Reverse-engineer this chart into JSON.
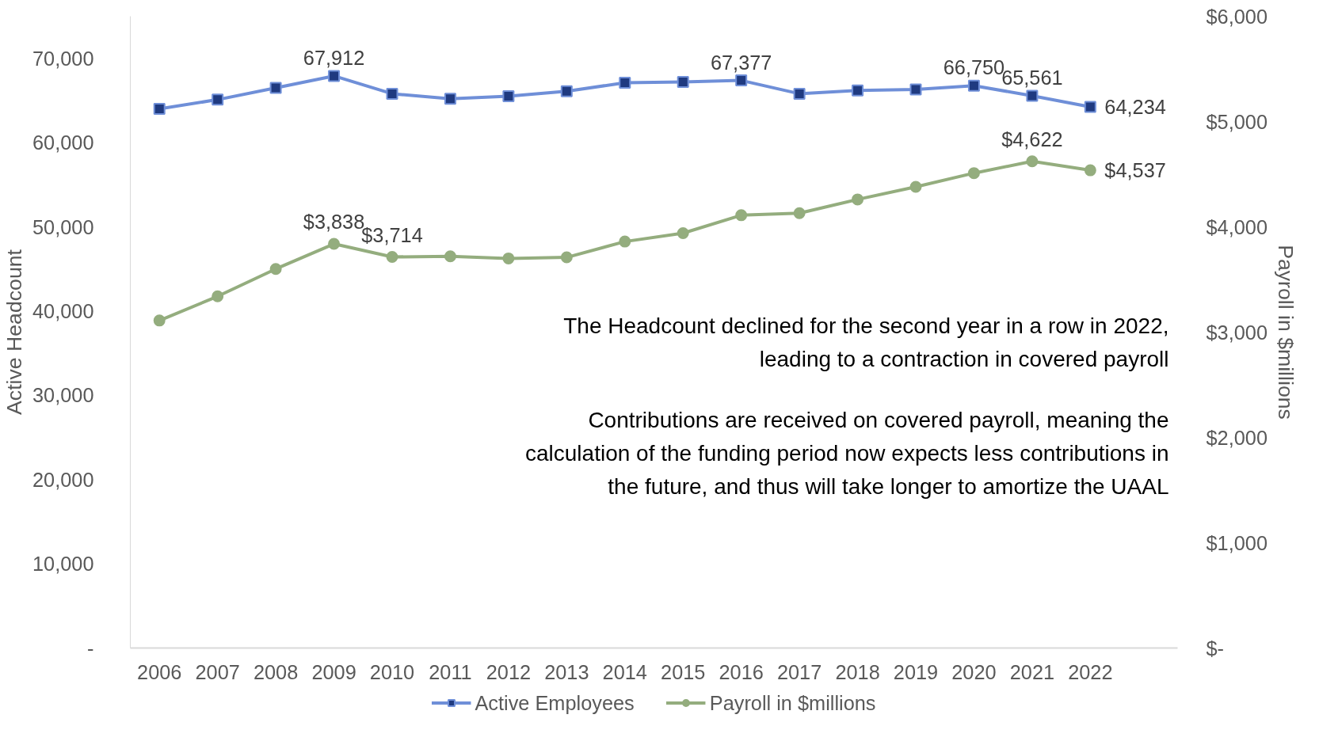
{
  "chart_data": {
    "type": "line",
    "categories": [
      "2006",
      "2007",
      "2008",
      "2009",
      "2010",
      "2011",
      "2012",
      "2013",
      "2014",
      "2015",
      "2016",
      "2017",
      "2018",
      "2019",
      "2020",
      "2021",
      "2022"
    ],
    "series": [
      {
        "name": "Active Employees",
        "color": "#6f8fd8",
        "marker": "square",
        "axis": "y",
        "values": [
          64000,
          65100,
          66500,
          67912,
          65800,
          65200,
          65500,
          66100,
          67100,
          67200,
          67377,
          65800,
          66200,
          66300,
          66750,
          65561,
          64234
        ],
        "value_labels": [
          null,
          null,
          null,
          "67,912",
          null,
          null,
          null,
          null,
          null,
          null,
          "67,377",
          null,
          null,
          null,
          "66,750",
          "65,561",
          "64,234"
        ]
      },
      {
        "name": "Payroll in $millions",
        "color": "#94ad7e",
        "marker": "circle",
        "axis": "y2",
        "values": [
          3110,
          3340,
          3600,
          3838,
          3714,
          3720,
          3700,
          3710,
          3860,
          3940,
          4110,
          4130,
          4260,
          4380,
          4510,
          4622,
          4537
        ],
        "value_labels": [
          null,
          null,
          null,
          "$3,838",
          "$3,714",
          null,
          null,
          null,
          null,
          null,
          null,
          null,
          null,
          null,
          null,
          "$4,622",
          "$4,537"
        ]
      }
    ],
    "ylabel": "Active Headcount",
    "y2label": "Payroll in $millions",
    "ylim": [
      0,
      75000
    ],
    "yticks": [
      {
        "value": 0,
        "label": "-"
      },
      {
        "value": 10000,
        "label": "10,000"
      },
      {
        "value": 20000,
        "label": "20,000"
      },
      {
        "value": 30000,
        "label": "30,000"
      },
      {
        "value": 40000,
        "label": "40,000"
      },
      {
        "value": 50000,
        "label": "50,000"
      },
      {
        "value": 60000,
        "label": "60,000"
      },
      {
        "value": 70000,
        "label": "70,000"
      }
    ],
    "y2lim": [
      0,
      6000
    ],
    "y2ticks": [
      {
        "value": 0,
        "label": "$-"
      },
      {
        "value": 1000,
        "label": "$1,000"
      },
      {
        "value": 2000,
        "label": "$2,000"
      },
      {
        "value": 3000,
        "label": "$3,000"
      },
      {
        "value": 4000,
        "label": "$4,000"
      },
      {
        "value": 5000,
        "label": "$5,000"
      },
      {
        "value": 6000,
        "label": "$6,000"
      }
    ],
    "annotations": [
      "The Headcount declined for the second year in a row in 2022,\nleading to a contraction in covered payroll",
      "Contributions are received on covered payroll, meaning the\ncalculation of the funding period now expects less contributions in\nthe future, and thus will take longer to amortize the UAAL"
    ],
    "legend": "bottom",
    "grid": false,
    "line_style": "solid"
  }
}
